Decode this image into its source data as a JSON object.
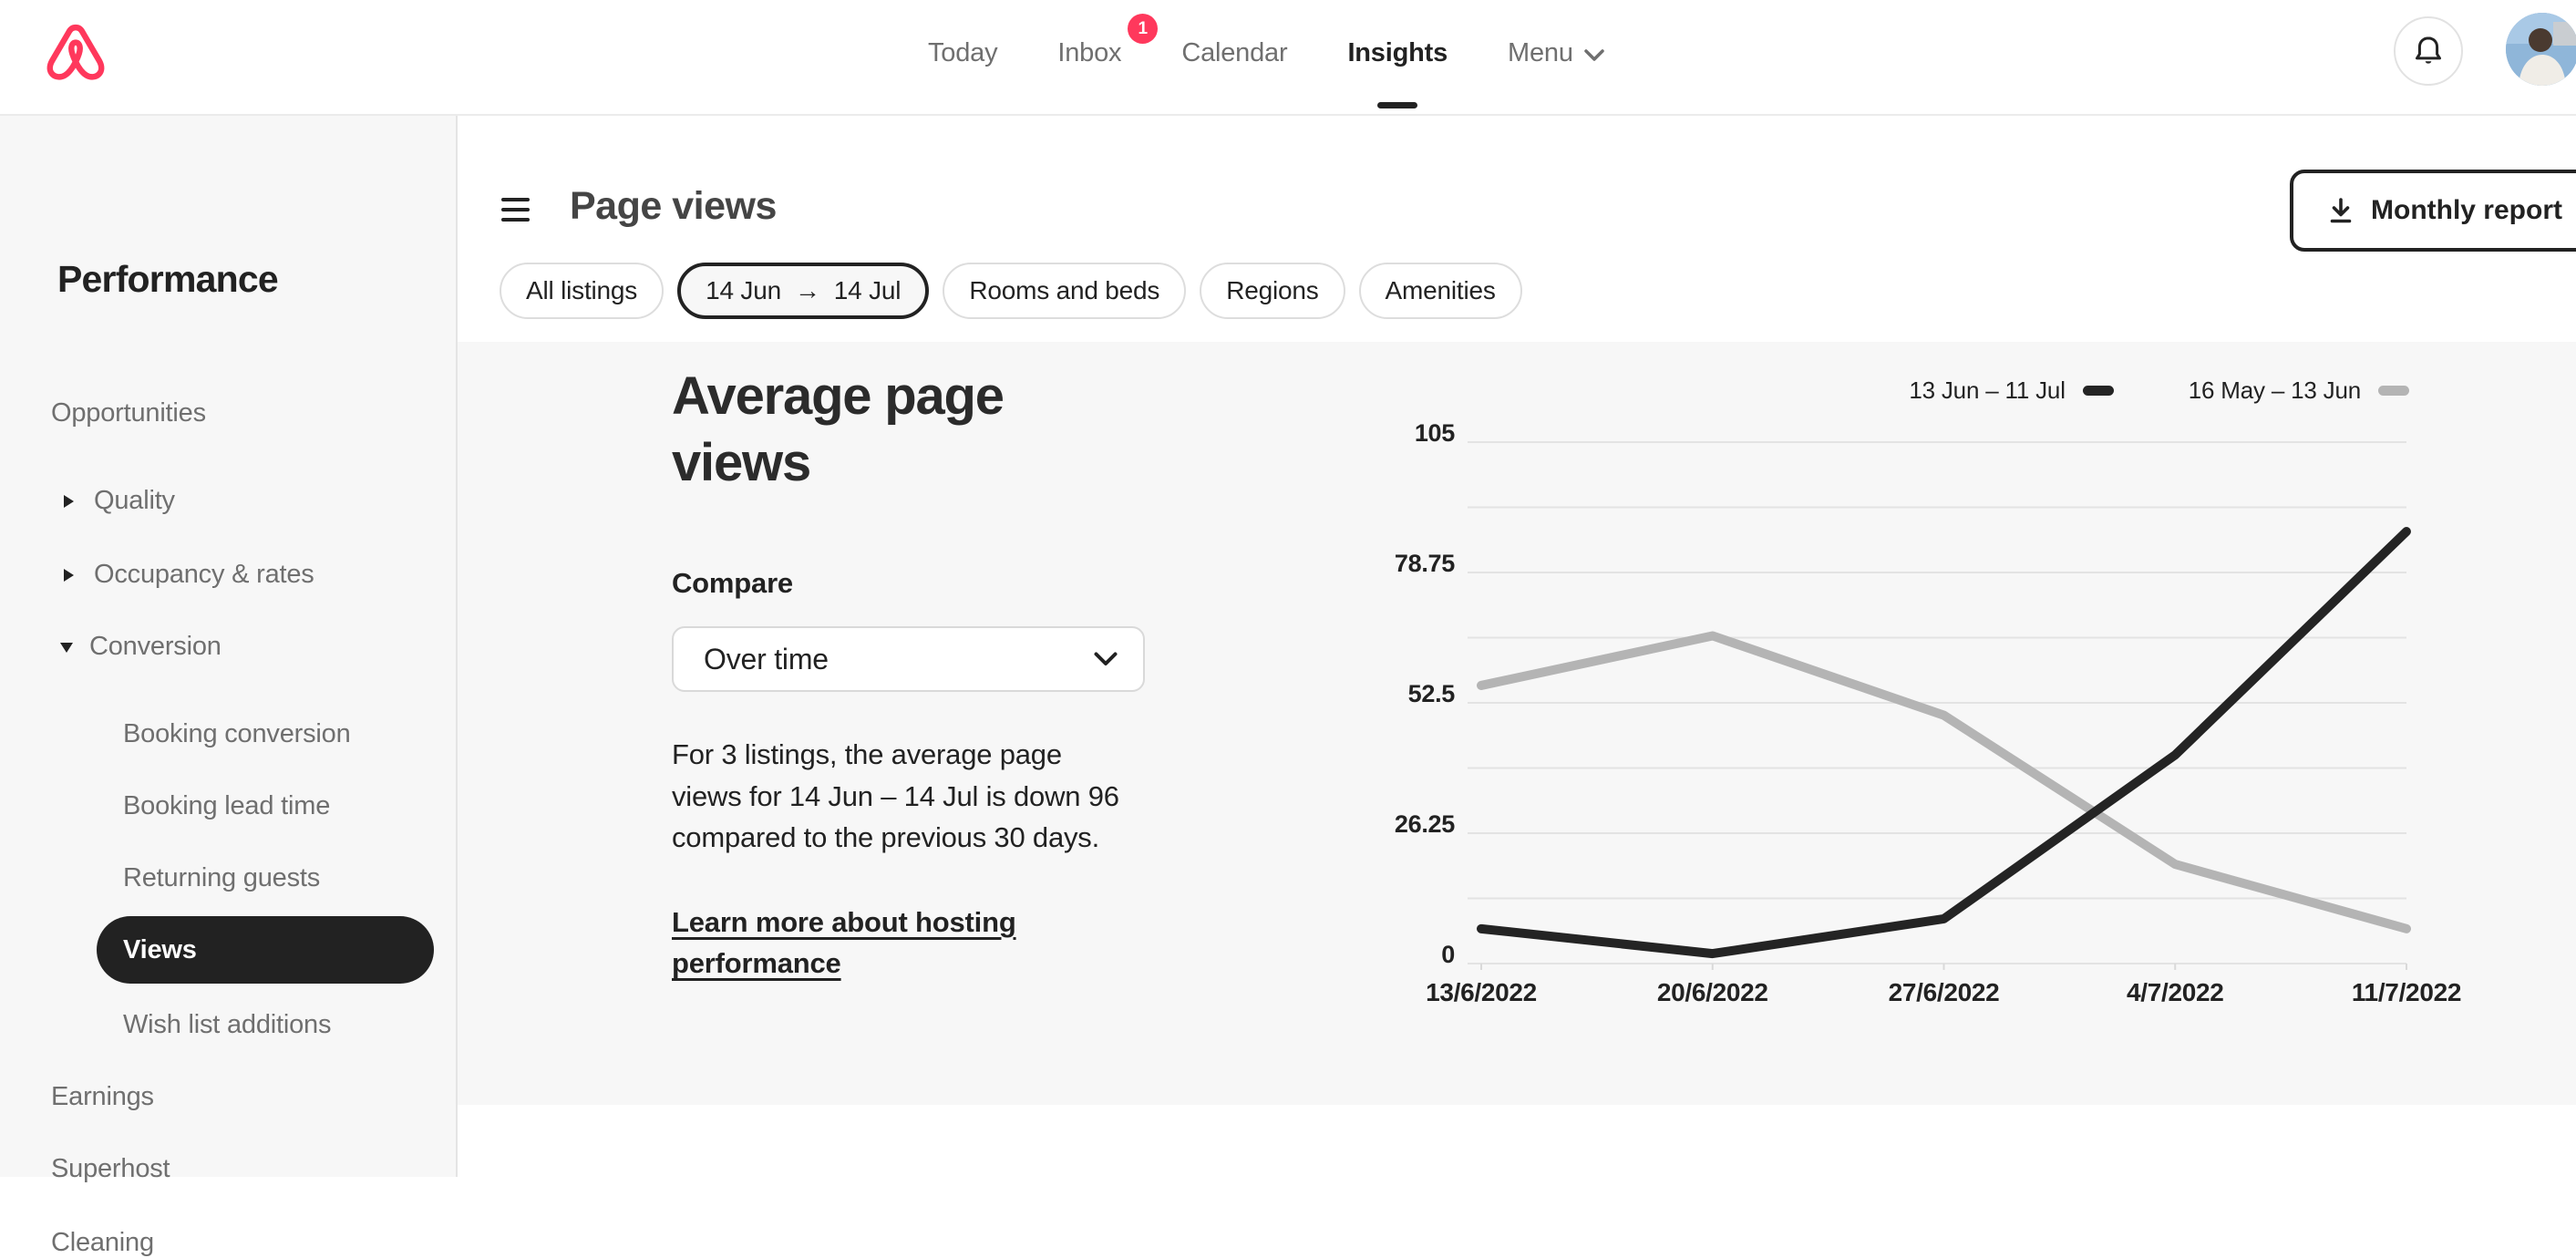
{
  "brand": {
    "color": "#ff385c",
    "name": "airbnb"
  },
  "nav": {
    "items": [
      {
        "label": "Today"
      },
      {
        "label": "Inbox",
        "badge": "1"
      },
      {
        "label": "Calendar"
      },
      {
        "label": "Insights",
        "active": true
      },
      {
        "label": "Menu"
      }
    ]
  },
  "sidebar": {
    "title": "Performance",
    "top_item": "Opportunities",
    "groups": [
      {
        "label": "Quality",
        "expanded": false
      },
      {
        "label": "Occupancy & rates",
        "expanded": false
      },
      {
        "label": "Conversion",
        "expanded": true
      }
    ],
    "conversion_items": [
      {
        "label": "Booking conversion",
        "selected": false
      },
      {
        "label": "Booking lead time",
        "selected": false
      },
      {
        "label": "Returning guests",
        "selected": false
      },
      {
        "label": "Views",
        "selected": true
      },
      {
        "label": "Wish list additions",
        "selected": false
      }
    ],
    "bottom_items": [
      {
        "label": "Earnings"
      },
      {
        "label": "Superhost"
      },
      {
        "label": "Cleaning"
      }
    ]
  },
  "toolbar": {
    "title": "Page views",
    "report_button": "Monthly report",
    "chips": [
      {
        "label": "All listings"
      },
      {
        "label": "Rooms and beds"
      },
      {
        "label": "Regions"
      },
      {
        "label": "Amenities"
      }
    ],
    "date_chip": {
      "from": "14 Jun",
      "arrow": "→",
      "to": "14 Jul"
    }
  },
  "panel": {
    "heading": "Average page views",
    "compare_label": "Compare",
    "compare_value": "Over time",
    "description": "For 3 listings, the average page views for 14 Jun – 14 Jul is down 96 compared to the previous 30 days.",
    "link": "Learn more about hosting performance"
  },
  "chart_data": {
    "type": "line",
    "title": "Average page views",
    "categories": [
      "13/6/2022",
      "20/6/2022",
      "27/6/2022",
      "4/7/2022",
      "11/7/2022"
    ],
    "series": [
      {
        "name": "13 Jun – 11 Jul",
        "color": "#242424",
        "values": [
          7,
          2,
          9,
          42,
          87
        ]
      },
      {
        "name": "16 May – 13 Jun",
        "color": "#b4b4b4",
        "values": [
          56,
          66,
          50,
          20,
          7
        ]
      }
    ],
    "ylim": [
      0,
      105
    ],
    "ytick_labels": [
      "0",
      "26.25",
      "52.5",
      "78.75",
      "105"
    ],
    "minor_gridlines_between_ticks": true,
    "grid": true,
    "legend_position": "top-right",
    "xlabel": "",
    "ylabel": ""
  }
}
